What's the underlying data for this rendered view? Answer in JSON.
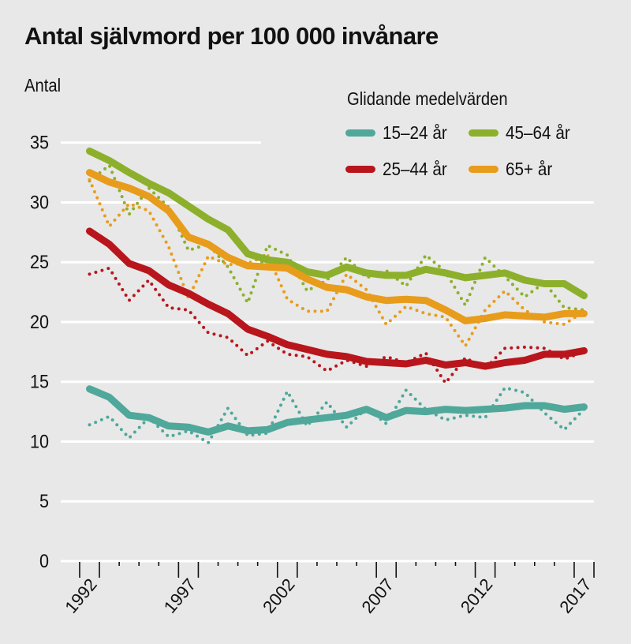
{
  "chart_data": {
    "type": "line",
    "title": "Antal självmord per 100 000 invånare",
    "ylabel": "Antal",
    "xlabel": "",
    "legend_title": "Glidande medelvärden",
    "legend_position": "top-right",
    "ylim": [
      0,
      35
    ],
    "yticks": [
      0,
      5,
      10,
      15,
      20,
      25,
      30,
      35
    ],
    "xticks_labeled": [
      1992,
      1997,
      2002,
      2007,
      2012,
      2017
    ],
    "x": [
      1992,
      1993,
      1994,
      1995,
      1996,
      1997,
      1998,
      1999,
      2000,
      2001,
      2002,
      2003,
      2004,
      2005,
      2006,
      2007,
      2008,
      2009,
      2010,
      2011,
      2012,
      2013,
      2014,
      2015,
      2016,
      2017
    ],
    "grid": true,
    "series": [
      {
        "name": "15–24 år",
        "color": "#4fa89a",
        "moving_average": [
          14.4,
          13.7,
          12.2,
          12.0,
          11.3,
          11.2,
          10.8,
          11.3,
          10.9,
          11.0,
          11.6,
          11.8,
          12.0,
          12.2,
          12.7,
          12.0,
          12.6,
          12.5,
          12.7,
          12.6,
          12.7,
          12.8,
          13.0,
          13.0,
          12.7,
          12.9
        ],
        "annual": [
          11.4,
          12.1,
          10.3,
          12.0,
          10.4,
          10.9,
          9.9,
          12.8,
          10.5,
          10.7,
          14.2,
          11.3,
          13.3,
          11.2,
          12.8,
          11.5,
          14.3,
          12.7,
          11.8,
          12.2,
          12.0,
          14.5,
          14.1,
          12.4,
          11.0,
          12.7
        ]
      },
      {
        "name": "25–44 år",
        "color": "#b8161c",
        "moving_average": [
          27.6,
          26.5,
          24.9,
          24.3,
          23.1,
          22.4,
          21.5,
          20.7,
          19.4,
          18.8,
          18.1,
          17.7,
          17.3,
          17.1,
          16.7,
          16.6,
          16.5,
          16.8,
          16.4,
          16.6,
          16.3,
          16.6,
          16.8,
          17.3,
          17.3,
          17.6
        ],
        "annual": [
          24.0,
          24.5,
          21.8,
          23.5,
          21.2,
          21.0,
          19.1,
          18.7,
          17.2,
          18.4,
          17.3,
          17.1,
          15.9,
          16.8,
          16.3,
          17.1,
          16.6,
          17.4,
          14.9,
          17.0,
          16.1,
          17.8,
          17.9,
          17.8,
          16.9,
          17.5
        ]
      },
      {
        "name": "45–64 år",
        "color": "#8db02c",
        "moving_average": [
          34.3,
          33.5,
          32.5,
          31.6,
          30.8,
          29.7,
          28.6,
          27.7,
          25.7,
          25.2,
          25.0,
          24.2,
          23.9,
          24.6,
          24.1,
          23.9,
          23.9,
          24.4,
          24.1,
          23.7,
          23.9,
          24.1,
          23.5,
          23.2,
          23.2,
          22.2
        ],
        "annual": [
          31.8,
          33.1,
          29.0,
          31.2,
          29.6,
          26.0,
          26.5,
          24.6,
          21.6,
          26.4,
          25.6,
          22.6,
          23.5,
          25.4,
          23.7,
          24.3,
          23.0,
          25.6,
          24.2,
          21.4,
          25.4,
          23.8,
          22.1,
          23.3,
          21.2,
          21.0
        ]
      },
      {
        "name": "65+ år",
        "color": "#e89c1c",
        "moving_average": [
          32.5,
          31.7,
          31.2,
          30.5,
          29.3,
          27.1,
          26.5,
          25.4,
          24.7,
          24.6,
          24.5,
          23.6,
          22.9,
          22.7,
          22.1,
          21.8,
          21.9,
          21.8,
          21.0,
          20.1,
          20.3,
          20.6,
          20.5,
          20.4,
          20.7,
          20.7
        ],
        "annual": [
          31.9,
          28.0,
          29.9,
          29.3,
          26.3,
          22.0,
          25.5,
          24.8,
          24.9,
          25.6,
          21.9,
          20.9,
          20.9,
          24.0,
          22.7,
          19.8,
          21.3,
          20.7,
          20.4,
          18.0,
          21.0,
          22.6,
          21.0,
          20.0,
          19.8,
          20.9
        ]
      }
    ]
  }
}
